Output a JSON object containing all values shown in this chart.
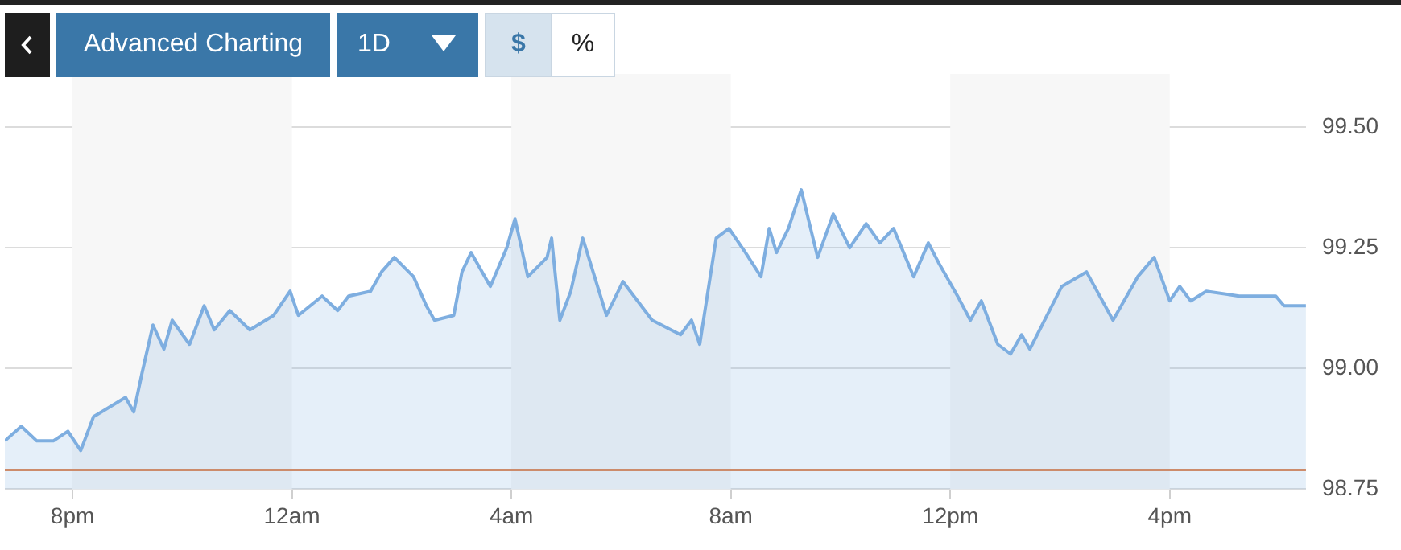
{
  "chart_data": {
    "type": "area",
    "annotations": [
      "Advanced Charting",
      "1D",
      "$",
      "%"
    ],
    "x": [
      "--01-01T18:46",
      "--01-01T19:04",
      "--01-01T19:21",
      "--01-01T19:39",
      "--01-01T19:55",
      "--01-01T20:09",
      "--01-01T20:23",
      "--01-01T20:58",
      "--01-01T21:07",
      "--01-01T21:16",
      "--01-01T21:28",
      "--01-01T21:40",
      "--01-01T21:49",
      "--01-01T22:08",
      "--01-01T22:24",
      "--01-01T22:35",
      "--01-01T22:52",
      "--01-01T23:14",
      "--01-01T23:40",
      "--01-01T23:58",
      "--01-02T00:07",
      "--01-02T00:33",
      "--01-02T00:50",
      "--01-02T01:02",
      "--01-02T01:26",
      "--01-02T01:38",
      "--01-02T01:52",
      "--01-02T02:13",
      "--01-02T02:27",
      "--01-02T02:36",
      "--01-02T02:57",
      "--01-02T03:06",
      "--01-02T03:16",
      "--01-02T03:37",
      "--01-02T03:55",
      "--01-02T04:04",
      "--01-02T04:18",
      "--01-02T04:39",
      "--01-02T04:44",
      "--01-02T04:53",
      "--01-02T05:05",
      "--01-02T05:18",
      "--01-02T05:44",
      "--01-02T06:02",
      "--01-02T06:34",
      "--01-02T07:05",
      "--01-02T07:17",
      "--01-02T07:26",
      "--01-02T07:44",
      "--01-02T07:58",
      "--01-02T08:16",
      "--01-02T08:33",
      "--01-02T08:42",
      "--01-02T08:50",
      "--01-02T09:03",
      "--01-02T09:17",
      "--01-02T09:35",
      "--01-02T09:52",
      "--01-02T10:10",
      "--01-02T10:28",
      "--01-02T10:43",
      "--01-02T10:58",
      "--01-02T11:20",
      "--01-02T11:36",
      "--01-02T11:47",
      "--01-02T12:08",
      "--01-02T12:22",
      "--01-02T12:34",
      "--01-02T12:52",
      "--01-02T13:06",
      "--01-02T13:18",
      "--01-02T13:27",
      "--01-02T14:02",
      "--01-02T14:29",
      "--01-02T14:58",
      "--01-02T15:25",
      "--01-02T15:43",
      "--01-02T16:00",
      "--01-02T16:11",
      "--01-02T16:23",
      "--01-02T16:40",
      "--01-02T17:16",
      "--01-02T17:56",
      "--01-02T18:05",
      "--01-02T18:29"
    ],
    "series": [
      {
        "color": "#7eaee0",
        "values": [
          98.85,
          98.88,
          98.85,
          98.85,
          98.87,
          98.83,
          98.9,
          98.94,
          98.91,
          98.99,
          99.09,
          99.04,
          99.1,
          99.05,
          99.13,
          99.08,
          99.12,
          99.08,
          99.11,
          99.16,
          99.11,
          99.15,
          99.12,
          99.15,
          99.16,
          99.2,
          99.23,
          99.19,
          99.13,
          99.1,
          99.11,
          99.2,
          99.24,
          99.17,
          99.25,
          99.31,
          99.19,
          99.23,
          99.27,
          99.1,
          99.16,
          99.27,
          99.11,
          99.18,
          99.1,
          99.07,
          99.1,
          99.05,
          99.27,
          99.29,
          99.24,
          99.19,
          99.29,
          99.24,
          99.29,
          99.37,
          99.23,
          99.32,
          99.25,
          99.3,
          99.26,
          99.29,
          99.19,
          99.26,
          99.22,
          99.15,
          99.1,
          99.14,
          99.05,
          99.03,
          99.07,
          99.04,
          99.17,
          99.2,
          99.1,
          99.19,
          99.23,
          99.14,
          99.17,
          99.14,
          99.16,
          99.15,
          99.15,
          99.13,
          99.13
        ]
      }
    ],
    "xlim": [
      "--01-01T18:46",
      "--01-02T18:29"
    ],
    "xticks": [
      {
        "value": "--01-01T20:00",
        "label": "8pm"
      },
      {
        "value": "--01-02T00:00",
        "label": "12am"
      },
      {
        "value": "--01-02T04:00",
        "label": "4am"
      },
      {
        "value": "--01-02T08:00",
        "label": "8am"
      },
      {
        "value": "--01-02T12:00",
        "label": "12pm"
      },
      {
        "value": "--01-02T16:00",
        "label": "4pm"
      }
    ],
    "ylim": [
      98.75,
      99.5
    ],
    "yticks": [
      {
        "value": 98.75,
        "label": "98.75"
      },
      {
        "value": 99,
        "label": "99.00"
      },
      {
        "value": 99.25,
        "label": "99.25"
      },
      {
        "value": 99.5,
        "label": "99.50"
      }
    ],
    "grid": "y",
    "ref_lines": [
      {
        "axis": "y",
        "value": 98.79,
        "color": "#e0824e"
      }
    ],
    "bands": [
      {
        "axis": "x",
        "from": "--01-01T20:00",
        "to": "--01-02T00:00",
        "color": "#f7f7f7"
      },
      {
        "axis": "x",
        "from": "--01-02T04:00",
        "to": "--01-02T08:00",
        "color": "#f7f7f7"
      },
      {
        "axis": "x",
        "from": "--01-02T12:00",
        "to": "--01-02T16:00",
        "color": "#f7f7f7"
      }
    ]
  }
}
